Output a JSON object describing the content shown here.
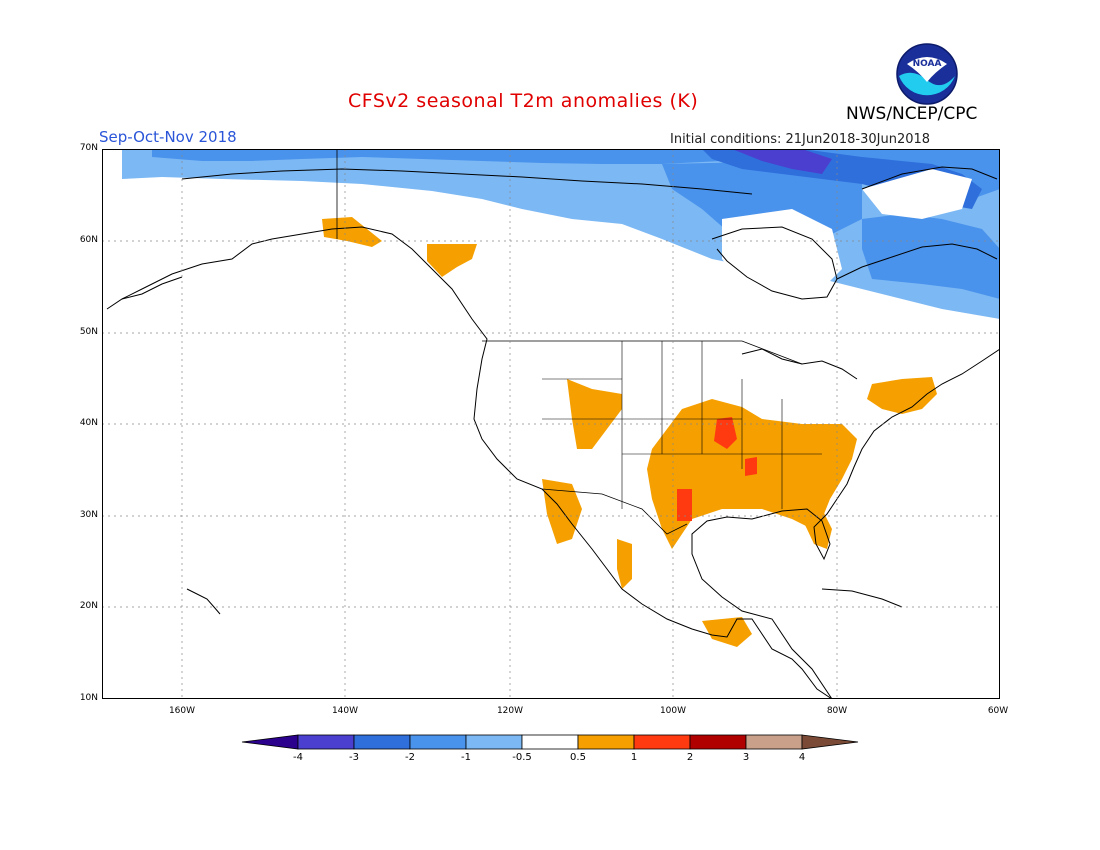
{
  "header": {
    "title": "CFSv2 seasonal T2m anomalies (K)",
    "org": "NWS/NCEP/CPC",
    "season": "Sep-Oct-Nov 2018",
    "initial_conditions": "Initial conditions: 21Jun2018-30Jun2018"
  },
  "logo": {
    "text": "NOAA",
    "icon": "noaa-logo-icon"
  },
  "axes": {
    "lat_labels": [
      "70N",
      "60N",
      "50N",
      "40N",
      "30N",
      "20N",
      "10N"
    ],
    "lon_labels": [
      "160W",
      "140W",
      "120W",
      "100W",
      "80W",
      "60W"
    ]
  },
  "colorbar": {
    "labels": [
      "-4",
      "-3",
      "-2",
      "-1",
      "-0.5",
      "0.5",
      "1",
      "2",
      "3",
      "4"
    ],
    "colors": [
      "#2a008c",
      "#4b3fd0",
      "#2e6fdc",
      "#4a93ec",
      "#7cb8f4",
      "#ffffff",
      "#f5a000",
      "#ff3a10",
      "#b00000",
      "#c9a08a",
      "#7a4a36"
    ]
  },
  "map": {
    "region": "North America",
    "lat_range": [
      10,
      70
    ],
    "lon_range": [
      -170,
      -60
    ],
    "grid": true,
    "anomaly_regions": [
      {
        "name": "Arctic Canada / Greenland",
        "category": "-1 to -0.5",
        "color": "#7cb8f4"
      },
      {
        "name": "Northern Hudson Bay / Baffin",
        "category": "-2 to -1",
        "color": "#4a93ec"
      },
      {
        "name": "Canadian Arctic Archipelago",
        "category": "-3 to -2",
        "color": "#2e6fdc"
      },
      {
        "name": "Labrador / Quebec",
        "category": "-2 to -1",
        "color": "#4a93ec"
      },
      {
        "name": "Central and Southern United States",
        "category": "0.5 to 1",
        "color": "#f5a000"
      },
      {
        "name": "Missouri / Arkansas",
        "category": "1 to 2",
        "color": "#ff3a10"
      },
      {
        "name": "Southeast Alaska / Gulf coast",
        "category": "0.5 to 1",
        "color": "#f5a000"
      },
      {
        "name": "Southern Mexico / Central America",
        "category": "0.5 to 1",
        "color": "#f5a000"
      }
    ]
  }
}
